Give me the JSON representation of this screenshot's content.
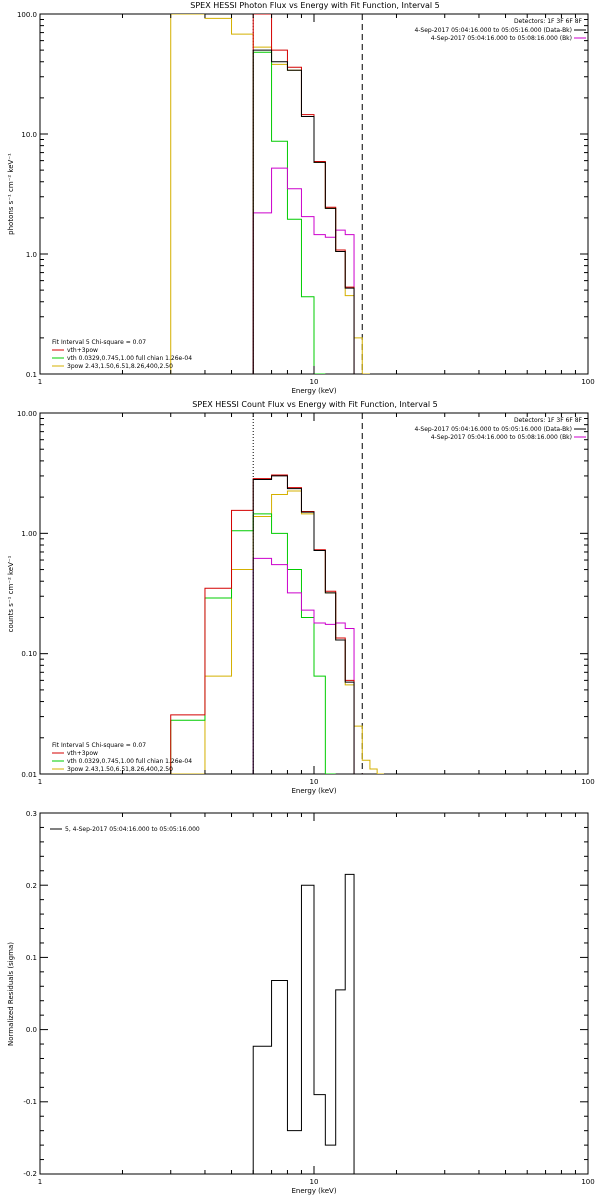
{
  "colors": {
    "data": "#000000",
    "total": "#d40000",
    "thermal": "#00cc00",
    "powerlaw": "#d4b000",
    "background": "#cc00cc",
    "axis": "#000000"
  },
  "chart_data": [
    {
      "type": "line",
      "title": "SPEX HESSI Photon Flux vs Energy with Fit Function, Interval 5",
      "xlabel": "Energy (keV)",
      "ylabel": "photons s⁻¹ cm⁻² keV⁻¹",
      "xscale": "log",
      "yscale": "log",
      "xlim": [
        1,
        100
      ],
      "ylim": [
        0.1,
        100
      ],
      "xticks": [
        "1",
        "10",
        "100"
      ],
      "yticks": [
        "0.1",
        "1.0",
        "10.0",
        "100.0"
      ],
      "legend_top_right": [
        "Detectors: 1F 3F 6F 8F",
        "4-Sep-2017 05:04:16.000 to 05:05:16.000 (Data-Bk)",
        "4-Sep-2017 05:04:16.000 to 05:08:16.000 (Bk)"
      ],
      "legend_bottom_left": [
        "Fit Interval 5   Chi-square = 0.07",
        "vth+3pow",
        "vth 0.0329,0.745,1.00  full chian 1.26e-04",
        "3pow 2.43,1.50,6.51,8.26,400,2.50"
      ],
      "fit_range_keV": [
        6,
        15
      ],
      "series": [
        {
          "name": "Data-Bk",
          "edges": [
            6,
            7,
            8,
            9,
            10,
            11,
            12,
            13,
            14,
            15
          ],
          "values": [
            50,
            40,
            34,
            14,
            5.8,
            2.4,
            1.05,
            0.52,
            0.1
          ]
        },
        {
          "name": "vth+3pow",
          "edges": [
            6,
            7,
            8,
            9,
            10,
            11,
            12,
            13,
            14,
            15
          ],
          "values": [
            100,
            50,
            36,
            14.5,
            5.9,
            2.45,
            1.08,
            0.53,
            0.1
          ]
        },
        {
          "name": "vth",
          "edges": [
            6,
            7,
            8,
            9,
            10,
            11
          ],
          "values": [
            48,
            8.7,
            1.95,
            0.44,
            0.1
          ]
        },
        {
          "name": "3pow",
          "edges": [
            3,
            4,
            5,
            6,
            7,
            8,
            9,
            10,
            11,
            12,
            13,
            14,
            15,
            16
          ],
          "values": [
            100,
            92,
            68,
            53,
            38,
            34,
            14,
            5.8,
            2.4,
            1.05,
            0.45,
            0.2,
            0.1
          ]
        },
        {
          "name": "Bk",
          "edges": [
            6,
            7,
            8,
            9,
            10,
            11,
            12,
            13,
            14,
            15
          ],
          "values": [
            2.2,
            5.2,
            3.5,
            2.05,
            1.45,
            1.38,
            1.58,
            1.45,
            0.1
          ]
        }
      ]
    },
    {
      "type": "line",
      "title": "SPEX HESSI Count Flux vs Energy with Fit Function, Interval 5",
      "xlabel": "Energy (keV)",
      "ylabel": "counts s⁻¹ cm⁻² keV⁻¹",
      "xscale": "log",
      "yscale": "log",
      "xlim": [
        1,
        100
      ],
      "ylim": [
        0.01,
        10
      ],
      "xticks": [
        "1",
        "10",
        "100"
      ],
      "yticks": [
        "0.01",
        "0.10",
        "1.00",
        "10.00"
      ],
      "legend_top_right": [
        "Detectors: 1F 3F 6F 8F",
        "4-Sep-2017 05:04:16.000 to 05:05:16.000 (Data-Bk)",
        "4-Sep-2017 05:04:16.000 to 05:08:16.000 (Bk)"
      ],
      "legend_bottom_left": [
        "Fit Interval 5   Chi-square = 0.07",
        "vth+3pow",
        "vth 0.0329,0.745,1.00  full chian 1.26e-04",
        "3pow 2.43,1.50,6.51,8.26,400,2.50"
      ],
      "fit_range_keV": [
        6,
        15
      ],
      "series": [
        {
          "name": "Data-Bk",
          "edges": [
            6,
            7,
            8,
            9,
            10,
            11,
            12,
            13,
            14,
            15
          ],
          "values": [
            2.8,
            3.0,
            2.35,
            1.5,
            0.72,
            0.32,
            0.13,
            0.058,
            0.01
          ]
        },
        {
          "name": "vth+3pow",
          "edges": [
            3,
            4,
            5,
            6,
            7,
            8,
            9,
            10,
            11,
            12,
            13,
            14,
            15
          ],
          "values": [
            0.031,
            0.35,
            1.55,
            2.85,
            3.05,
            2.4,
            1.52,
            0.73,
            0.33,
            0.135,
            0.06,
            0.01
          ]
        },
        {
          "name": "vth",
          "edges": [
            3,
            4,
            5,
            6,
            7,
            8,
            9,
            10,
            11,
            12
          ],
          "values": [
            0.028,
            0.29,
            1.05,
            1.45,
            1.0,
            0.5,
            0.2,
            0.065,
            0.01
          ]
        },
        {
          "name": "3pow",
          "edges": [
            3,
            4,
            5,
            6,
            7,
            8,
            9,
            10,
            11,
            12,
            13,
            14,
            15,
            16,
            17,
            18
          ],
          "values": [
            0.01,
            0.065,
            0.5,
            1.38,
            2.1,
            2.25,
            1.45,
            0.72,
            0.32,
            0.13,
            0.055,
            0.025,
            0.013,
            0.011,
            0.01
          ]
        },
        {
          "name": "Bk",
          "edges": [
            6,
            7,
            8,
            9,
            10,
            11,
            12,
            13,
            14,
            15
          ],
          "values": [
            0.62,
            0.55,
            0.32,
            0.23,
            0.18,
            0.175,
            0.18,
            0.162,
            0.01
          ]
        }
      ]
    },
    {
      "type": "line",
      "title": "",
      "xlabel": "Energy (keV)",
      "ylabel": "Normalized Residuals (sigma)",
      "xscale": "log",
      "yscale": "linear",
      "xlim": [
        1,
        100
      ],
      "ylim": [
        -0.2,
        0.3
      ],
      "xticks": [
        "1",
        "10",
        "100"
      ],
      "yticks": [
        "-0.2",
        "-0.1",
        "0.0",
        "0.1",
        "0.2",
        "0.3"
      ],
      "legend_top_left": [
        "5,  4-Sep-2017 05:04:16.000 to 05:05:16.000"
      ],
      "series": [
        {
          "name": "5,  4-Sep-2017 05:04:16.000 to 05:05:16.000",
          "edges": [
            6,
            7,
            8,
            9,
            10,
            11,
            12,
            13,
            14,
            15
          ],
          "values": [
            -0.023,
            0.068,
            -0.14,
            0.2,
            -0.09,
            -0.16,
            0.055,
            0.215,
            -0.2
          ]
        }
      ]
    }
  ]
}
